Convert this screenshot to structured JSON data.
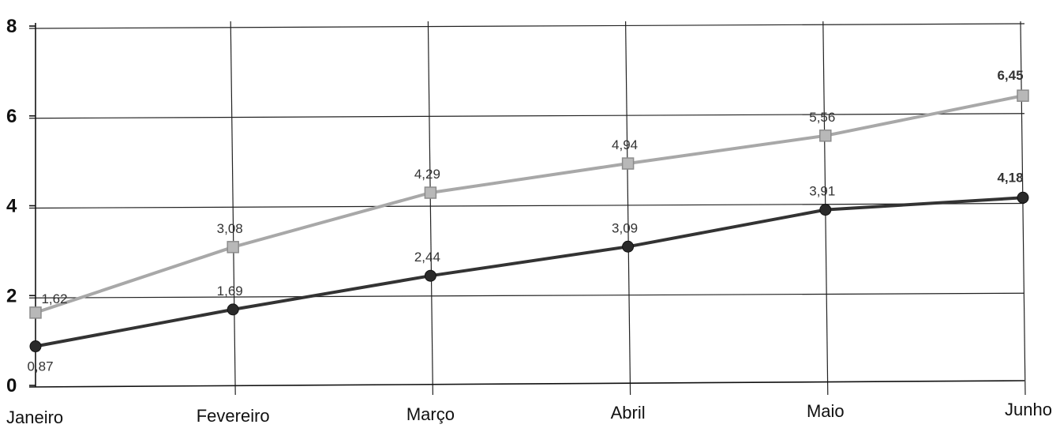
{
  "chart_data": {
    "type": "line",
    "title": "",
    "xlabel": "",
    "ylabel": "",
    "categories": [
      "Janeiro",
      "Fevereiro",
      "Março",
      "Abril",
      "Maio",
      "Junho"
    ],
    "ylim": [
      0,
      8
    ],
    "yticks": [
      0,
      2,
      4,
      6,
      8
    ],
    "grid": true,
    "legend": "none",
    "series": [
      {
        "values": [
          1.62,
          3.08,
          4.29,
          4.94,
          5.56,
          6.45
        ],
        "labels": [
          "1,62",
          "3,08",
          "4,29",
          "4,94",
          "5,56",
          "6,45"
        ],
        "color": "#a8a8a8",
        "marker": "square"
      },
      {
        "values": [
          0.87,
          1.69,
          2.44,
          3.09,
          3.91,
          4.18
        ],
        "labels": [
          "0,87",
          "1,69",
          "2,44",
          "3,09",
          "3,91",
          "4,18"
        ],
        "color": "#333333",
        "marker": "circle"
      }
    ]
  }
}
